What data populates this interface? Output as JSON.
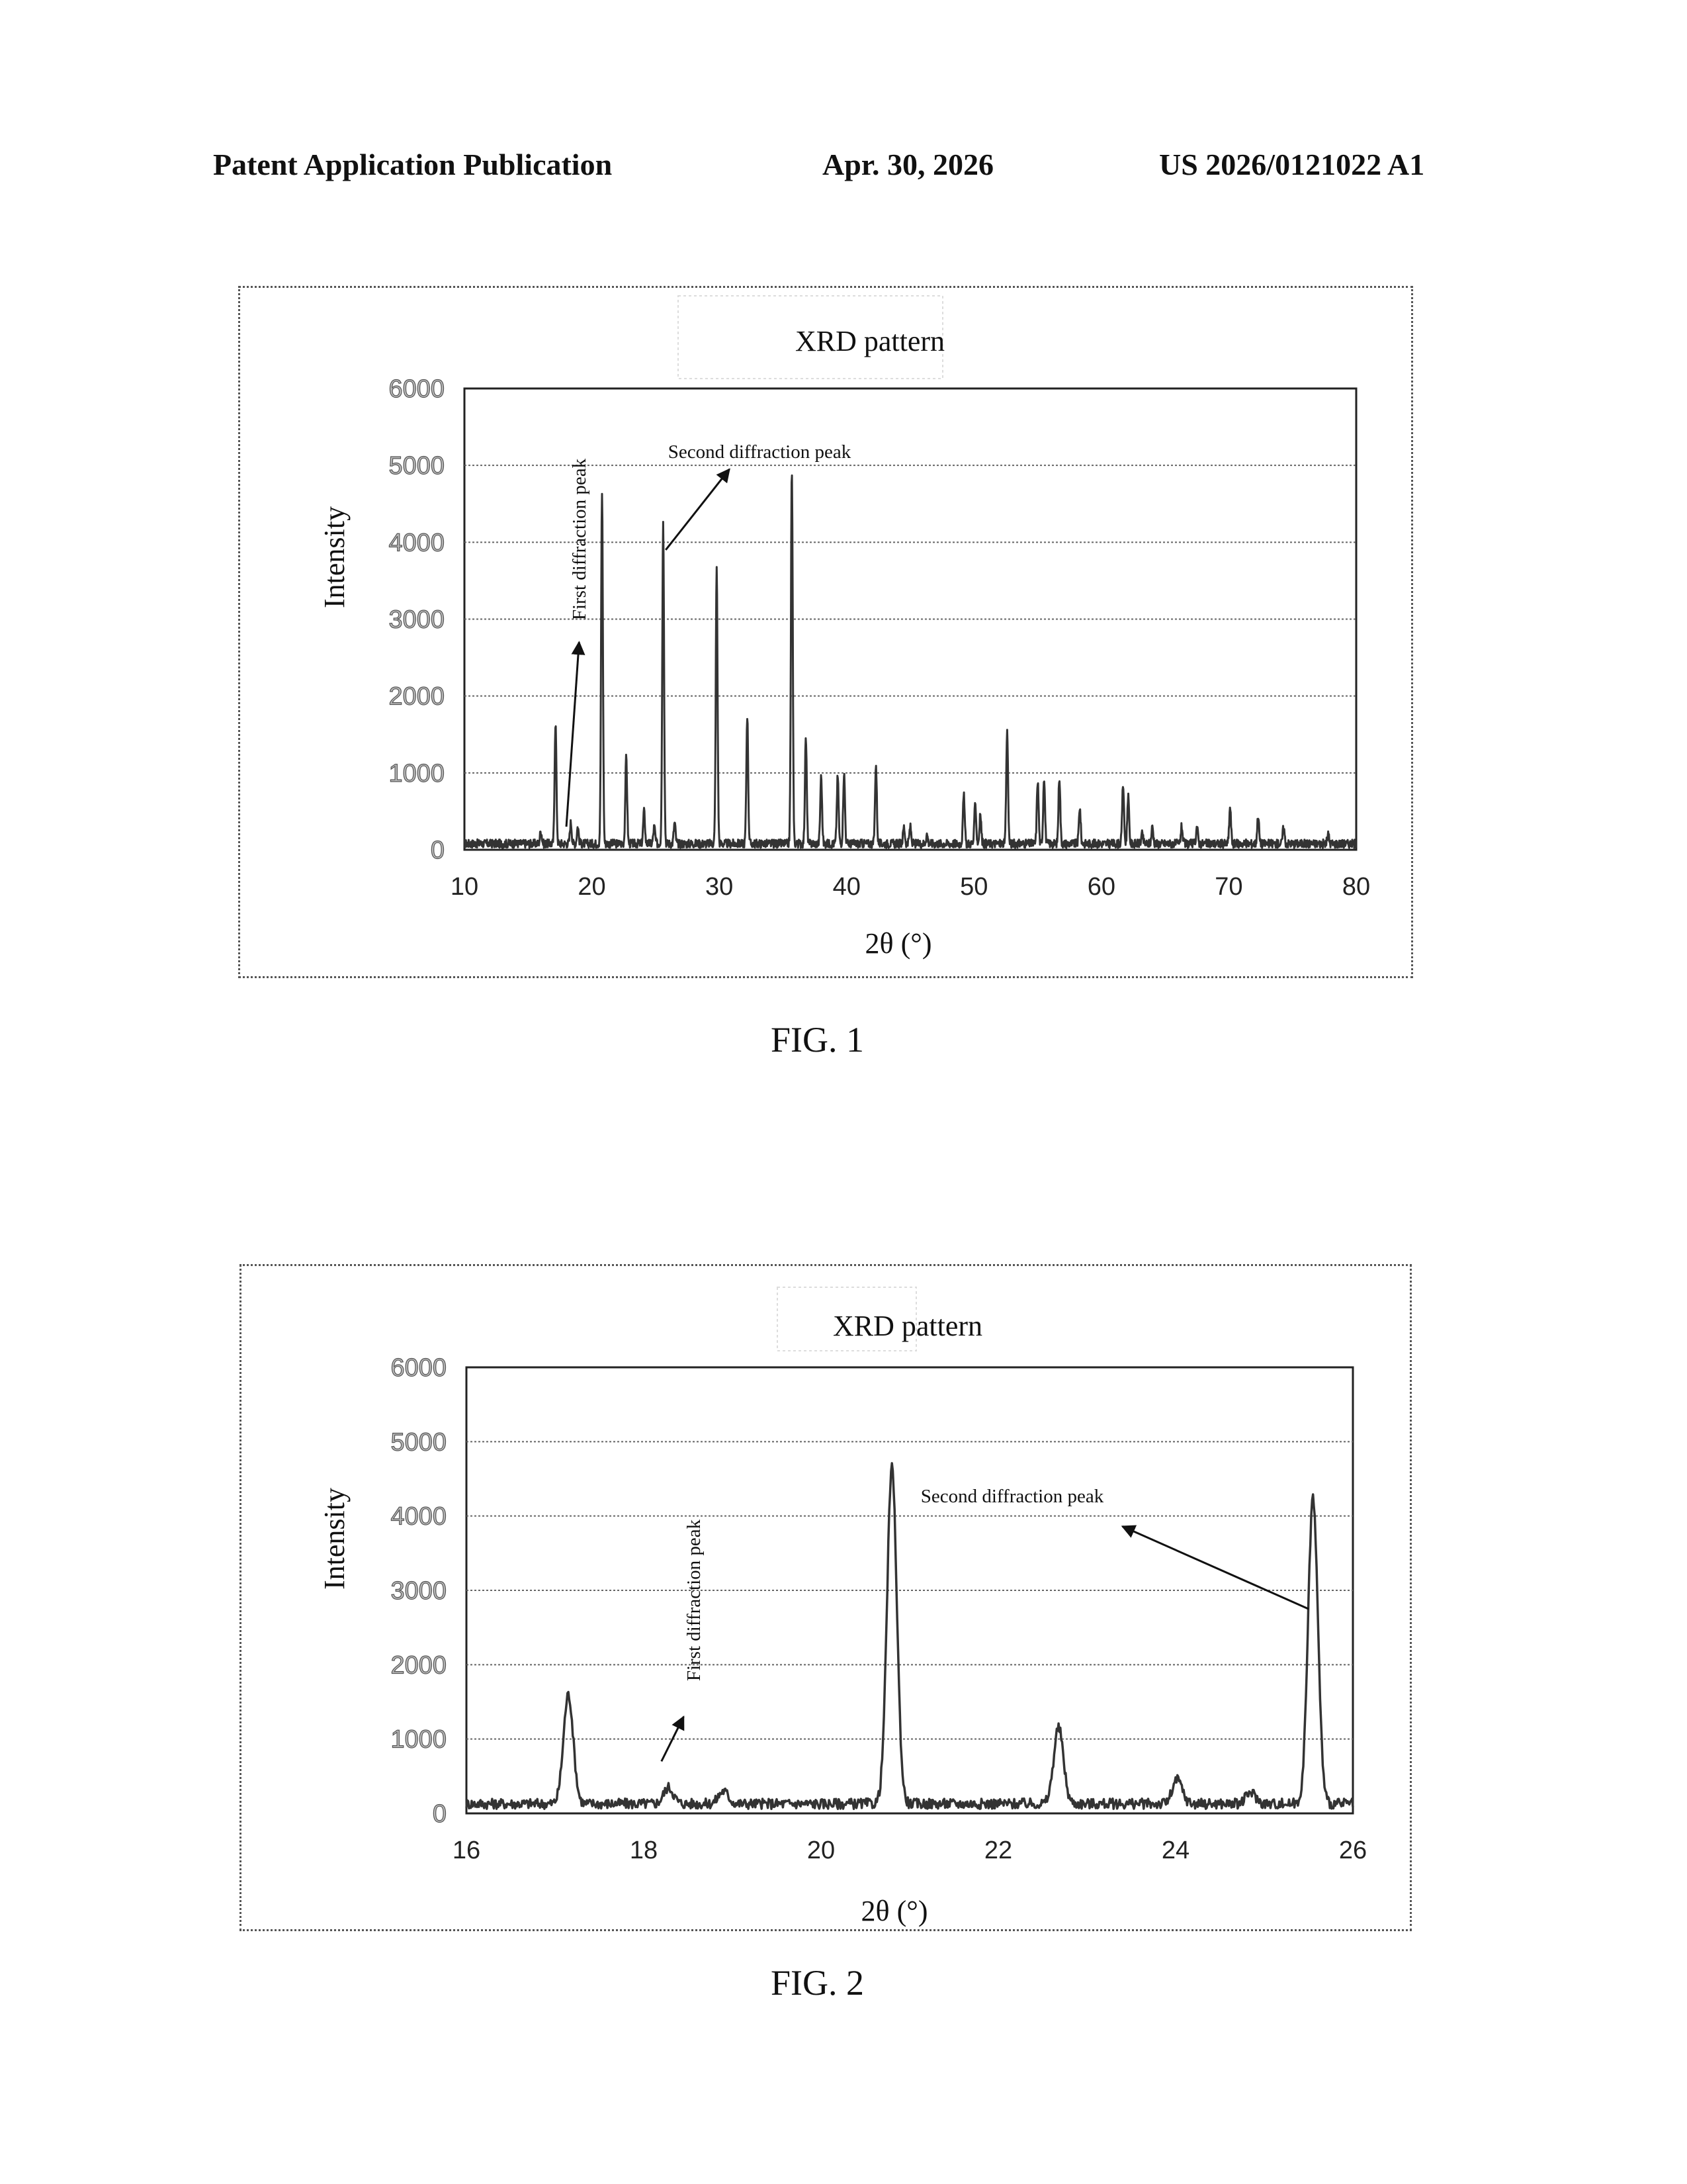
{
  "header": {
    "left": "Patent Application Publication",
    "date": "Apr. 30, 2026",
    "number": "US 2026/0121022 A1"
  },
  "figures": [
    {
      "caption": "FIG. 1"
    },
    {
      "caption": "FIG. 2"
    }
  ],
  "chart_data": [
    {
      "type": "line",
      "title": "XRD pattern",
      "xlabel": "2θ (°)",
      "ylabel": "Intensity",
      "xlim": [
        10,
        80
      ],
      "ylim": [
        0,
        6000
      ],
      "xticks": [
        10,
        20,
        30,
        40,
        50,
        60,
        70,
        80
      ],
      "yticks": [
        0,
        1000,
        2000,
        3000,
        4000,
        5000,
        6000
      ],
      "grid": "horizontal",
      "baseline": 80,
      "peaks": [
        {
          "x": 16.0,
          "y": 250
        },
        {
          "x": 17.15,
          "y": 1650
        },
        {
          "x": 18.35,
          "y": 350
        },
        {
          "x": 18.9,
          "y": 300
        },
        {
          "x": 20.8,
          "y": 4650
        },
        {
          "x": 22.7,
          "y": 1200
        },
        {
          "x": 24.1,
          "y": 500
        },
        {
          "x": 24.9,
          "y": 300
        },
        {
          "x": 25.6,
          "y": 4250
        },
        {
          "x": 26.5,
          "y": 350
        },
        {
          "x": 29.8,
          "y": 3650
        },
        {
          "x": 32.2,
          "y": 1750
        },
        {
          "x": 35.7,
          "y": 4950
        },
        {
          "x": 36.8,
          "y": 1450
        },
        {
          "x": 38.0,
          "y": 950
        },
        {
          "x": 39.3,
          "y": 950
        },
        {
          "x": 39.8,
          "y": 1000
        },
        {
          "x": 42.3,
          "y": 1100
        },
        {
          "x": 44.5,
          "y": 300
        },
        {
          "x": 45.0,
          "y": 300
        },
        {
          "x": 46.3,
          "y": 200
        },
        {
          "x": 49.2,
          "y": 700
        },
        {
          "x": 50.1,
          "y": 600
        },
        {
          "x": 50.5,
          "y": 450
        },
        {
          "x": 52.6,
          "y": 1550
        },
        {
          "x": 55.0,
          "y": 900
        },
        {
          "x": 55.5,
          "y": 950
        },
        {
          "x": 56.7,
          "y": 950
        },
        {
          "x": 58.3,
          "y": 550
        },
        {
          "x": 61.7,
          "y": 850
        },
        {
          "x": 62.1,
          "y": 700
        },
        {
          "x": 63.2,
          "y": 200
        },
        {
          "x": 64.0,
          "y": 300
        },
        {
          "x": 66.3,
          "y": 300
        },
        {
          "x": 67.5,
          "y": 300
        },
        {
          "x": 70.1,
          "y": 550
        },
        {
          "x": 72.3,
          "y": 450
        },
        {
          "x": 74.3,
          "y": 300
        },
        {
          "x": 77.8,
          "y": 200
        }
      ],
      "annotations": [
        {
          "text": "First diffraction peak",
          "orientation": "vertical",
          "arrow_from": [
            18.0,
            300
          ],
          "arrow_to": [
            19.0,
            2700
          ]
        },
        {
          "text": "Second diffraction peak",
          "orientation": "horizontal",
          "arrow_from": [
            25.8,
            3900
          ],
          "arrow_to": [
            30.8,
            4950
          ]
        }
      ]
    },
    {
      "type": "line",
      "title": "XRD pattern",
      "xlabel": "2θ (°)",
      "ylabel": "Intensity",
      "xlim": [
        16,
        26
      ],
      "ylim": [
        0,
        6000
      ],
      "xticks": [
        16,
        18,
        20,
        22,
        24,
        26
      ],
      "yticks": [
        0,
        1000,
        2000,
        3000,
        4000,
        5000,
        6000
      ],
      "grid": "horizontal",
      "baseline": 130,
      "peaks": [
        {
          "x": 17.15,
          "y": 1600
        },
        {
          "x": 18.28,
          "y": 350
        },
        {
          "x": 18.9,
          "y": 300
        },
        {
          "x": 20.8,
          "y": 4650
        },
        {
          "x": 22.68,
          "y": 1150
        },
        {
          "x": 24.02,
          "y": 450
        },
        {
          "x": 24.85,
          "y": 280
        },
        {
          "x": 25.55,
          "y": 4250
        }
      ],
      "annotations": [
        {
          "text": "First diffraction peak",
          "orientation": "vertical",
          "arrow_from": [
            18.2,
            700
          ],
          "arrow_to": [
            18.45,
            1300
          ]
        },
        {
          "text": "Second diffraction peak",
          "orientation": "horizontal",
          "arrow_from": [
            25.5,
            2750
          ],
          "arrow_to": [
            23.4,
            3860
          ]
        }
      ]
    }
  ]
}
